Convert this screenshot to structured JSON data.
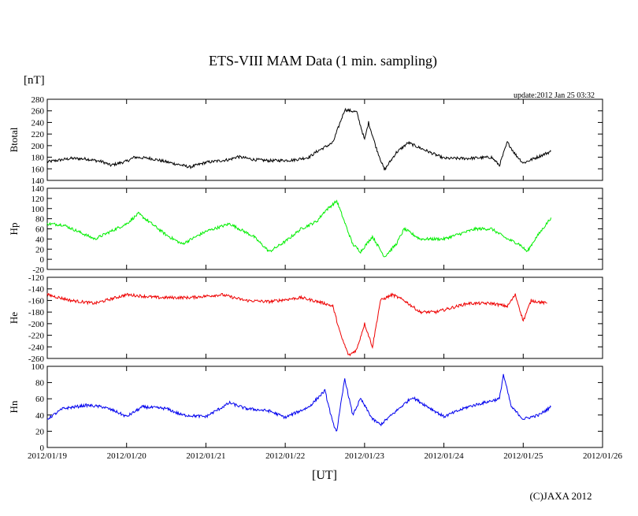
{
  "chart_data": {
    "type": "line",
    "title": "ETS-VIII MAM Data (1 min. sampling)",
    "unit_label": "[nT]",
    "update_text": "update:2012 Jan 25 03:32",
    "xlabel": "[UT]",
    "copyright": "(C)JAXA 2012",
    "x_ticks": [
      "2012/01/19",
      "2012/01/20",
      "2012/01/21",
      "2012/01/22",
      "2012/01/23",
      "2012/01/24",
      "2012/01/25",
      "2012/01/26"
    ],
    "xlim_days": [
      0,
      7
    ],
    "grid": false,
    "panels": [
      {
        "name": "Btotal",
        "ylabel": "Btotal",
        "color": "#000000",
        "ylim": [
          140,
          280
        ],
        "y_ticks": [
          "140",
          "160",
          "180",
          "200",
          "220",
          "240",
          "260",
          "280"
        ],
        "points": [
          [
            0.0,
            172
          ],
          [
            0.3,
            178
          ],
          [
            0.5,
            177
          ],
          [
            0.7,
            172
          ],
          [
            0.8,
            166
          ],
          [
            1.0,
            173
          ],
          [
            1.1,
            180
          ],
          [
            1.3,
            178
          ],
          [
            1.5,
            172
          ],
          [
            1.8,
            163
          ],
          [
            2.0,
            171
          ],
          [
            2.3,
            176
          ],
          [
            2.4,
            181
          ],
          [
            2.6,
            176
          ],
          [
            2.8,
            174
          ],
          [
            3.1,
            175
          ],
          [
            3.3,
            180
          ],
          [
            3.4,
            190
          ],
          [
            3.6,
            205
          ],
          [
            3.75,
            262
          ],
          [
            3.9,
            258
          ],
          [
            4.0,
            210
          ],
          [
            4.05,
            240
          ],
          [
            4.15,
            195
          ],
          [
            4.25,
            158
          ],
          [
            4.4,
            188
          ],
          [
            4.55,
            205
          ],
          [
            4.8,
            190
          ],
          [
            5.0,
            178
          ],
          [
            5.3,
            178
          ],
          [
            5.6,
            180
          ],
          [
            5.7,
            166
          ],
          [
            5.8,
            206
          ],
          [
            5.9,
            185
          ],
          [
            6.0,
            170
          ],
          [
            6.35,
            190
          ]
        ]
      },
      {
        "name": "Hp",
        "ylabel": "Hp",
        "color": "#00ee00",
        "ylim": [
          -20,
          140
        ],
        "y_ticks": [
          "-20",
          "0",
          "20",
          "40",
          "60",
          "80",
          "100",
          "120",
          "140"
        ],
        "points": [
          [
            0.0,
            70
          ],
          [
            0.2,
            68
          ],
          [
            0.6,
            40
          ],
          [
            1.0,
            70
          ],
          [
            1.15,
            90
          ],
          [
            1.3,
            72
          ],
          [
            1.5,
            48
          ],
          [
            1.7,
            30
          ],
          [
            2.0,
            55
          ],
          [
            2.3,
            70
          ],
          [
            2.6,
            45
          ],
          [
            2.8,
            15
          ],
          [
            3.0,
            35
          ],
          [
            3.2,
            60
          ],
          [
            3.4,
            75
          ],
          [
            3.5,
            95
          ],
          [
            3.65,
            115
          ],
          [
            3.85,
            30
          ],
          [
            3.95,
            15
          ],
          [
            4.1,
            45
          ],
          [
            4.25,
            5
          ],
          [
            4.4,
            30
          ],
          [
            4.5,
            60
          ],
          [
            4.7,
            40
          ],
          [
            5.0,
            40
          ],
          [
            5.4,
            60
          ],
          [
            5.6,
            60
          ],
          [
            5.8,
            40
          ],
          [
            5.95,
            30
          ],
          [
            6.05,
            15
          ],
          [
            6.15,
            40
          ],
          [
            6.35,
            82
          ]
        ]
      },
      {
        "name": "He",
        "ylabel": "He",
        "color": "#ee0000",
        "ylim": [
          -260,
          -120
        ],
        "y_ticks": [
          "-260",
          "-240",
          "-220",
          "-200",
          "-180",
          "-160",
          "-140",
          "-120"
        ],
        "points": [
          [
            0.0,
            -150
          ],
          [
            0.3,
            -160
          ],
          [
            0.6,
            -165
          ],
          [
            1.0,
            -150
          ],
          [
            1.4,
            -155
          ],
          [
            1.8,
            -155
          ],
          [
            2.2,
            -150
          ],
          [
            2.5,
            -160
          ],
          [
            2.8,
            -162
          ],
          [
            3.2,
            -155
          ],
          [
            3.5,
            -165
          ],
          [
            3.6,
            -170
          ],
          [
            3.7,
            -220
          ],
          [
            3.8,
            -255
          ],
          [
            3.9,
            -245
          ],
          [
            4.0,
            -200
          ],
          [
            4.1,
            -240
          ],
          [
            4.2,
            -160
          ],
          [
            4.35,
            -150
          ],
          [
            4.5,
            -160
          ],
          [
            4.7,
            -180
          ],
          [
            4.9,
            -180
          ],
          [
            5.3,
            -165
          ],
          [
            5.6,
            -165
          ],
          [
            5.8,
            -170
          ],
          [
            5.9,
            -150
          ],
          [
            6.0,
            -195
          ],
          [
            6.1,
            -160
          ],
          [
            6.3,
            -165
          ]
        ]
      },
      {
        "name": "Hn",
        "ylabel": "Hn",
        "color": "#0000ee",
        "ylim": [
          0,
          100
        ],
        "y_ticks": [
          "0",
          "20",
          "40",
          "60",
          "80",
          "100"
        ],
        "points": [
          [
            0.0,
            35
          ],
          [
            0.2,
            48
          ],
          [
            0.5,
            52
          ],
          [
            0.7,
            50
          ],
          [
            0.85,
            45
          ],
          [
            1.0,
            38
          ],
          [
            1.2,
            50
          ],
          [
            1.5,
            48
          ],
          [
            1.7,
            40
          ],
          [
            2.0,
            38
          ],
          [
            2.3,
            55
          ],
          [
            2.5,
            48
          ],
          [
            2.8,
            45
          ],
          [
            3.0,
            37
          ],
          [
            3.3,
            50
          ],
          [
            3.5,
            70
          ],
          [
            3.6,
            30
          ],
          [
            3.65,
            20
          ],
          [
            3.75,
            85
          ],
          [
            3.85,
            40
          ],
          [
            3.95,
            60
          ],
          [
            4.1,
            35
          ],
          [
            4.2,
            28
          ],
          [
            4.4,
            45
          ],
          [
            4.6,
            62
          ],
          [
            4.8,
            50
          ],
          [
            5.0,
            38
          ],
          [
            5.3,
            50
          ],
          [
            5.5,
            55
          ],
          [
            5.7,
            60
          ],
          [
            5.75,
            90
          ],
          [
            5.85,
            50
          ],
          [
            6.0,
            35
          ],
          [
            6.2,
            40
          ],
          [
            6.35,
            50
          ]
        ]
      }
    ]
  }
}
